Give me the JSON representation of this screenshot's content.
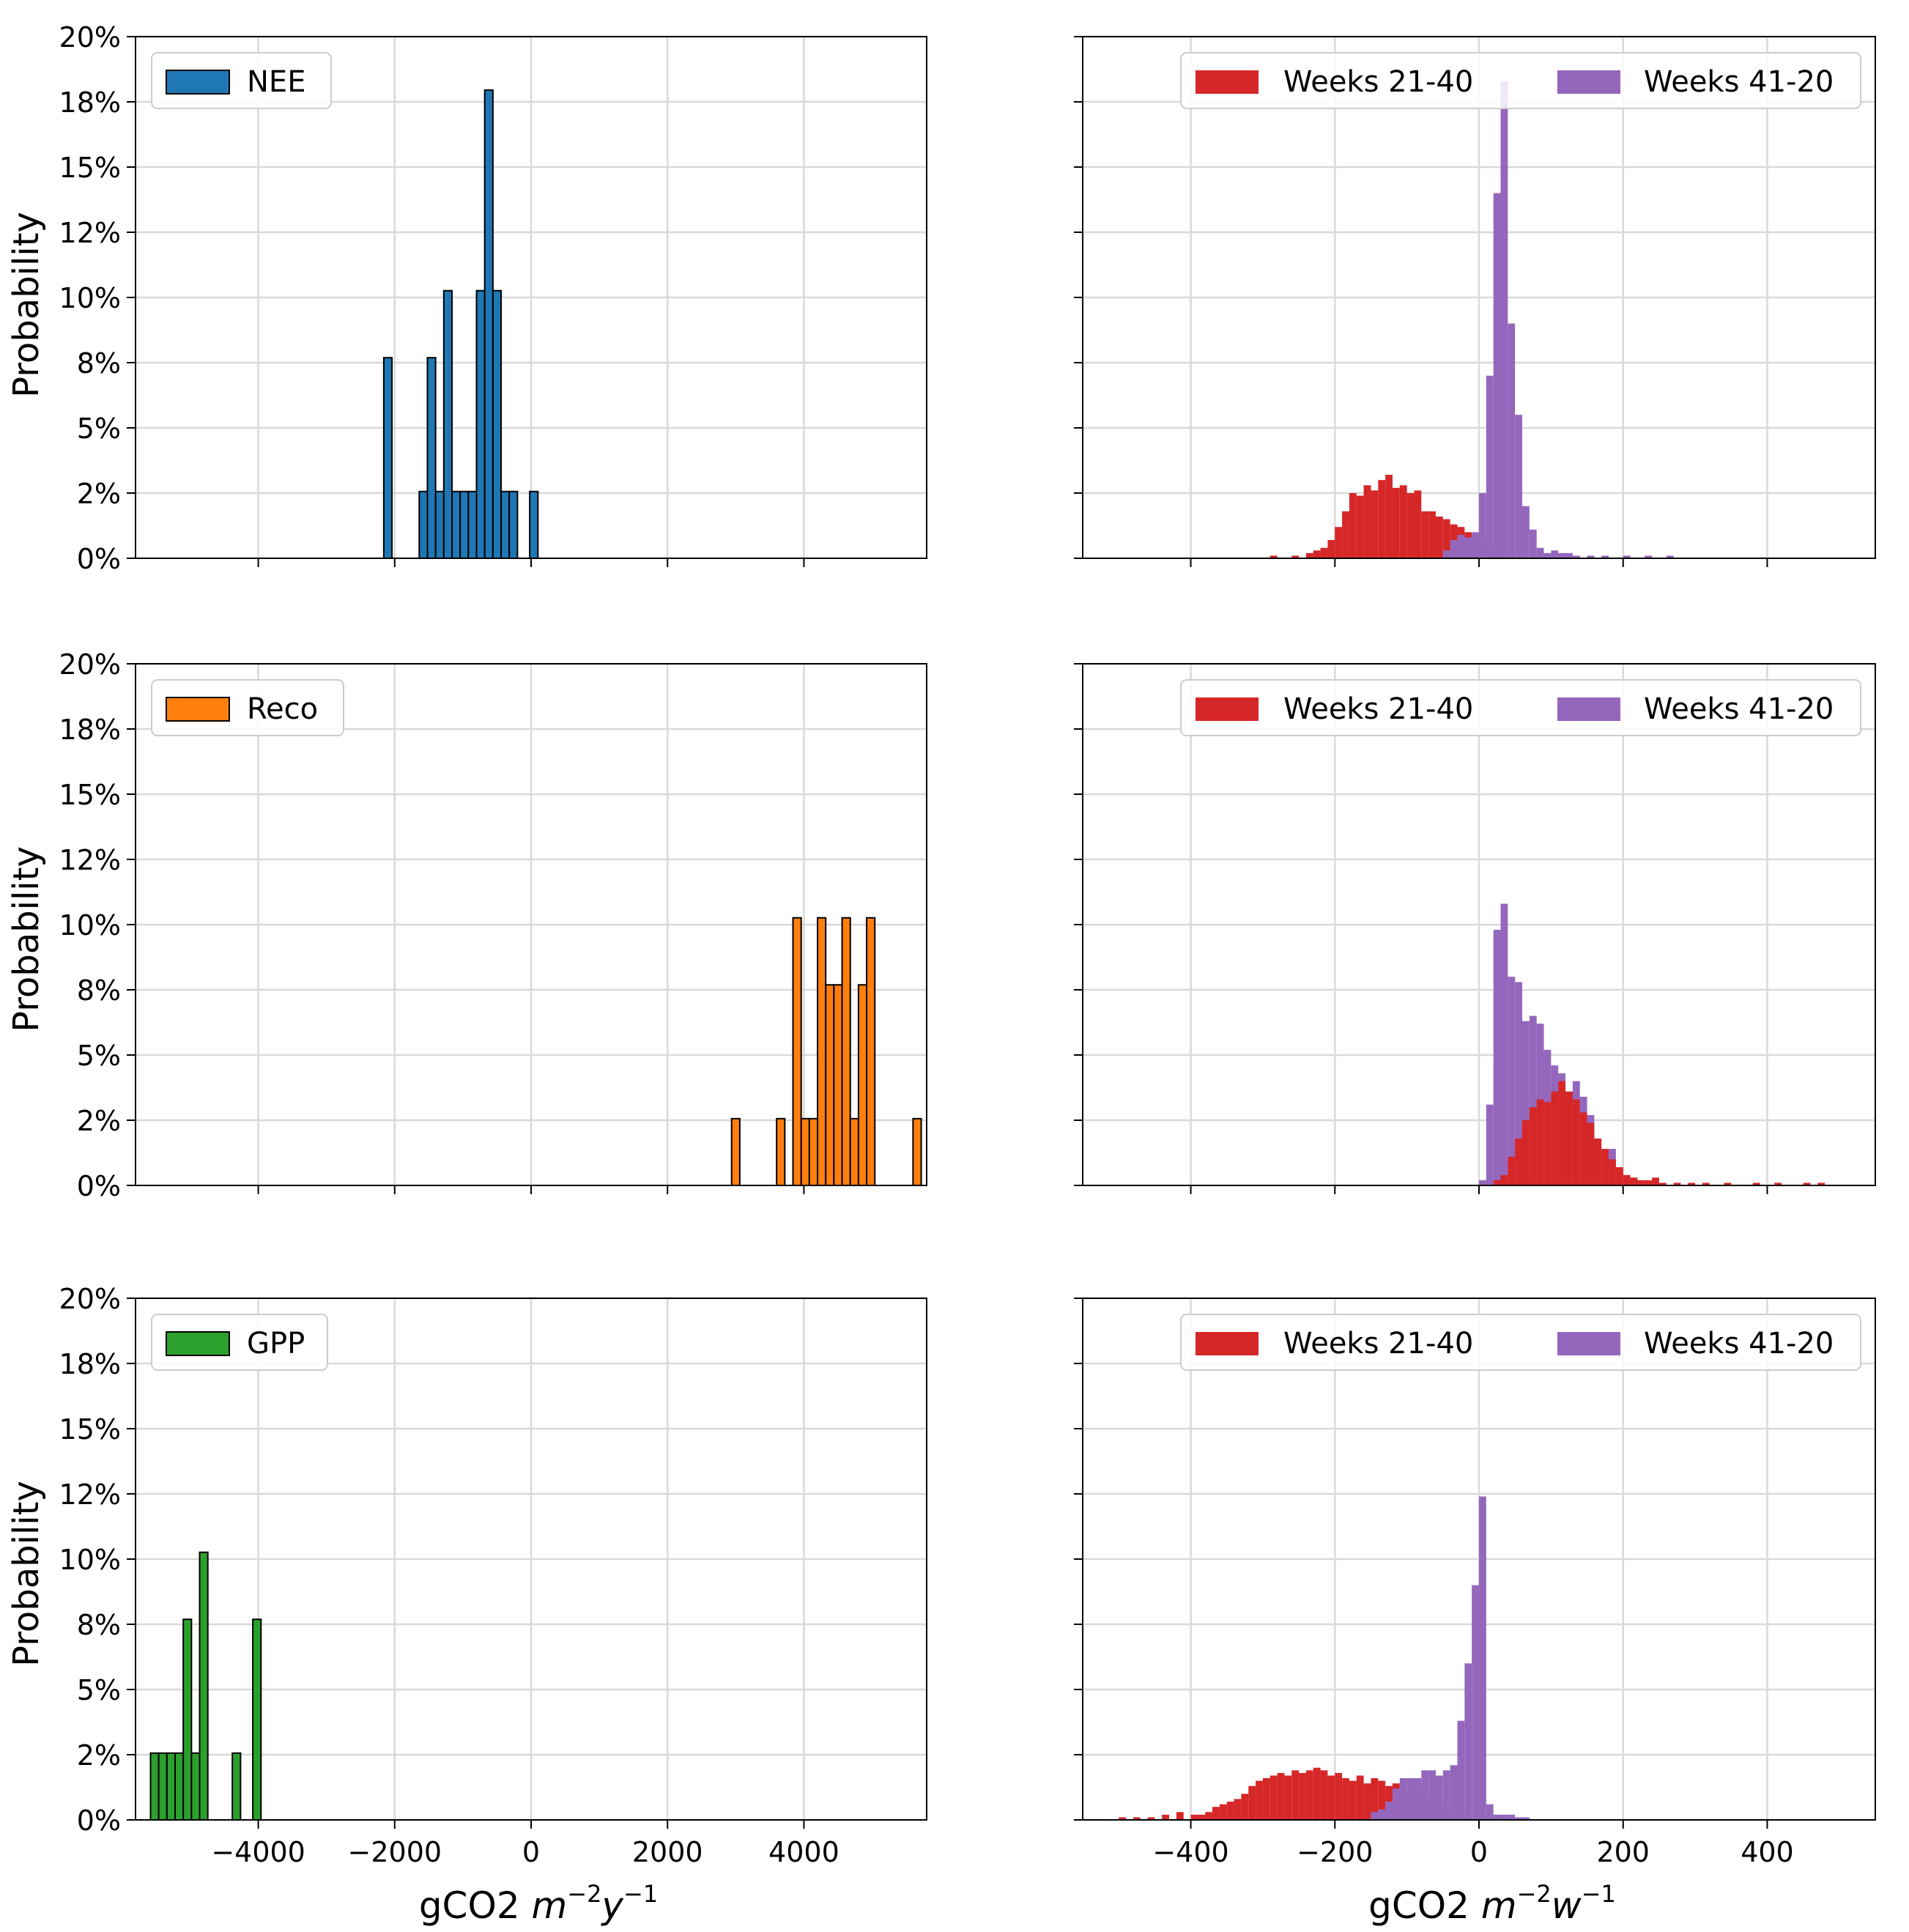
{
  "y_axis_label": "Probability",
  "left_x_axis_label": {
    "prefix": "gCO2 ",
    "base": "m",
    "sup1": "−2",
    "mid": "y",
    "sup2": "−1"
  },
  "right_x_axis_label": {
    "prefix": "gCO2 ",
    "base": "m",
    "sup1": "−2",
    "mid": "w",
    "sup2": "−1"
  },
  "y_ticks": [
    "0%",
    "2%",
    "5%",
    "8%",
    "10%",
    "12%",
    "15%",
    "18%",
    "20%"
  ],
  "left_x_ticks": [
    "−4000",
    "−2000",
    "0",
    "2000",
    "4000"
  ],
  "right_x_ticks": [
    "−400",
    "−200",
    "0",
    "200",
    "400"
  ],
  "colors": {
    "NEE": "#1f77b4",
    "Reco": "#ff7f0e",
    "GPP": "#2ca02c",
    "weeks_21_40": "#d62728",
    "weeks_41_20": "#9467bd"
  },
  "chart_data": [
    {
      "type": "bar",
      "panel": "NEE annual",
      "legend": "NEE",
      "xlabel": "gCO2 m^-2 y^-1",
      "ylabel": "Probability",
      "xlim": [
        -5800,
        5800
      ],
      "ylim": [
        0,
        0.2
      ],
      "bin_width": 120,
      "bins": [
        [
          -2160,
          0.0769
        ],
        [
          -1640,
          0.0256
        ],
        [
          -1520,
          0.0769
        ],
        [
          -1400,
          0.0256
        ],
        [
          -1280,
          0.1026
        ],
        [
          -1160,
          0.0256
        ],
        [
          -1040,
          0.0256
        ],
        [
          -920,
          0.0256
        ],
        [
          -800,
          0.1026
        ],
        [
          -680,
          0.1795
        ],
        [
          -560,
          0.1026
        ],
        [
          -440,
          0.0256
        ],
        [
          -320,
          0.0256
        ],
        [
          -20,
          0.0256
        ]
      ]
    },
    {
      "type": "bar",
      "panel": "Reco annual",
      "legend": "Reco",
      "xlabel": "gCO2 m^-2 y^-1",
      "ylabel": "Probability",
      "xlim": [
        -5800,
        5800
      ],
      "ylim": [
        0,
        0.2
      ],
      "bin_width": 120,
      "bins": [
        [
          2940,
          0.0256
        ],
        [
          3600,
          0.0256
        ],
        [
          3840,
          0.1026
        ],
        [
          3960,
          0.0256
        ],
        [
          4080,
          0.0256
        ],
        [
          4200,
          0.1026
        ],
        [
          4320,
          0.0769
        ],
        [
          4440,
          0.0769
        ],
        [
          4560,
          0.1026
        ],
        [
          4680,
          0.0256
        ],
        [
          4800,
          0.0769
        ],
        [
          4920,
          0.1026
        ],
        [
          5600,
          0.0256
        ]
      ]
    },
    {
      "type": "bar",
      "panel": "GPP annual",
      "legend": "GPP",
      "xlabel": "gCO2 m^-2 y^-1",
      "ylabel": "Probability",
      "xlim": [
        -5800,
        5800
      ],
      "ylim": [
        0,
        0.2
      ],
      "bin_width": 120,
      "bins": [
        [
          -5580,
          0.0256
        ],
        [
          -5460,
          0.0256
        ],
        [
          -5340,
          0.0256
        ],
        [
          -5220,
          0.0256
        ],
        [
          -5100,
          0.0769
        ],
        [
          -4980,
          0.0256
        ],
        [
          -4860,
          0.1026
        ],
        [
          -4380,
          0.0256
        ],
        [
          -4080,
          0.0769
        ]
      ]
    },
    {
      "type": "bar",
      "panel": "NEE weekly",
      "legend": [
        "Weeks 21-40",
        "Weeks 41-20"
      ],
      "xlabel": "gCO2 m^-2 w^-1",
      "xlim": [
        -550,
        550
      ],
      "ylim": [
        0,
        0.2
      ],
      "bin_width": 10,
      "series": [
        {
          "name": "Weeks 21-40",
          "color": "#d62728",
          "bins": [
            [
              -290,
              0.001
            ],
            [
              -260,
              0.001
            ],
            [
              -240,
              0.002
            ],
            [
              -230,
              0.003
            ],
            [
              -220,
              0.004
            ],
            [
              -210,
              0.007
            ],
            [
              -200,
              0.012
            ],
            [
              -190,
              0.018
            ],
            [
              -180,
              0.025
            ],
            [
              -170,
              0.024
            ],
            [
              -160,
              0.028
            ],
            [
              -150,
              0.026
            ],
            [
              -140,
              0.03
            ],
            [
              -130,
              0.032
            ],
            [
              -120,
              0.027
            ],
            [
              -110,
              0.028
            ],
            [
              -100,
              0.025
            ],
            [
              -90,
              0.026
            ],
            [
              -80,
              0.018
            ],
            [
              -70,
              0.018
            ],
            [
              -60,
              0.016
            ],
            [
              -50,
              0.015
            ],
            [
              -40,
              0.013
            ],
            [
              -30,
              0.012
            ],
            [
              -20,
              0.01
            ],
            [
              -10,
              0.008
            ],
            [
              0,
              0.007
            ],
            [
              10,
              0.004
            ],
            [
              20,
              0.003
            ],
            [
              30,
              0.002
            ],
            [
              40,
              0.001
            ]
          ]
        },
        {
          "name": "Weeks 41-20",
          "color": "#9467bd",
          "bins": [
            [
              -50,
              0.003
            ],
            [
              -40,
              0.007
            ],
            [
              -30,
              0.009
            ],
            [
              -20,
              0.008
            ],
            [
              -10,
              0.01
            ],
            [
              0,
              0.025
            ],
            [
              10,
              0.07
            ],
            [
              20,
              0.14
            ],
            [
              30,
              0.183
            ],
            [
              40,
              0.09
            ],
            [
              50,
              0.055
            ],
            [
              60,
              0.02
            ],
            [
              70,
              0.011
            ],
            [
              80,
              0.004
            ],
            [
              90,
              0.002
            ],
            [
              100,
              0.003
            ],
            [
              110,
              0.002
            ],
            [
              120,
              0.002
            ],
            [
              130,
              0.001
            ],
            [
              150,
              0.001
            ],
            [
              170,
              0.001
            ],
            [
              200,
              0.001
            ],
            [
              230,
              0.001
            ],
            [
              260,
              0.001
            ]
          ]
        }
      ]
    },
    {
      "type": "bar",
      "panel": "Reco weekly",
      "legend": [
        "Weeks 21-40",
        "Weeks 41-20"
      ],
      "xlabel": "gCO2 m^-2 w^-1",
      "xlim": [
        -550,
        550
      ],
      "ylim": [
        0,
        0.2
      ],
      "bin_width": 10,
      "series": [
        {
          "name": "Weeks 41-20",
          "color": "#9467bd",
          "bins": [
            [
              0,
              0.002
            ],
            [
              10,
              0.031
            ],
            [
              20,
              0.098
            ],
            [
              30,
              0.108
            ],
            [
              40,
              0.08
            ],
            [
              50,
              0.078
            ],
            [
              60,
              0.063
            ],
            [
              70,
              0.065
            ],
            [
              80,
              0.062
            ],
            [
              90,
              0.052
            ],
            [
              100,
              0.046
            ],
            [
              110,
              0.043
            ],
            [
              120,
              0.036
            ],
            [
              130,
              0.04
            ],
            [
              140,
              0.034
            ],
            [
              150,
              0.027
            ],
            [
              160,
              0.015
            ],
            [
              170,
              0.008
            ],
            [
              180,
              0.014
            ],
            [
              190,
              0.005
            ],
            [
              200,
              0.003
            ],
            [
              210,
              0.002
            ]
          ]
        },
        {
          "name": "Weeks 21-40",
          "color": "#d62728",
          "bins": [
            [
              20,
              0.002
            ],
            [
              30,
              0.004
            ],
            [
              40,
              0.011
            ],
            [
              50,
              0.018
            ],
            [
              60,
              0.025
            ],
            [
              70,
              0.03
            ],
            [
              80,
              0.033
            ],
            [
              90,
              0.032
            ],
            [
              100,
              0.036
            ],
            [
              110,
              0.04
            ],
            [
              120,
              0.036
            ],
            [
              130,
              0.033
            ],
            [
              140,
              0.028
            ],
            [
              150,
              0.024
            ],
            [
              160,
              0.018
            ],
            [
              170,
              0.014
            ],
            [
              180,
              0.01
            ],
            [
              190,
              0.007
            ],
            [
              200,
              0.004
            ],
            [
              210,
              0.003
            ],
            [
              220,
              0.002
            ],
            [
              230,
              0.002
            ],
            [
              240,
              0.003
            ],
            [
              250,
              0.001
            ],
            [
              270,
              0.001
            ],
            [
              290,
              0.001
            ],
            [
              310,
              0.001
            ],
            [
              340,
              0.001
            ],
            [
              380,
              0.001
            ],
            [
              410,
              0.001
            ],
            [
              450,
              0.001
            ],
            [
              470,
              0.001
            ]
          ]
        }
      ]
    },
    {
      "type": "bar",
      "panel": "GPP weekly",
      "legend": [
        "Weeks 21-40",
        "Weeks 41-20"
      ],
      "xlabel": "gCO2 m^-2 w^-1",
      "xlim": [
        -550,
        550
      ],
      "ylim": [
        0,
        0.2
      ],
      "bin_width": 10,
      "series": [
        {
          "name": "Weeks 21-40",
          "color": "#d62728",
          "bins": [
            [
              -500,
              0.001
            ],
            [
              -480,
              0.001
            ],
            [
              -460,
              0.001
            ],
            [
              -440,
              0.002
            ],
            [
              -420,
              0.003
            ],
            [
              -400,
              0.002
            ],
            [
              -390,
              0.002
            ],
            [
              -380,
              0.003
            ],
            [
              -370,
              0.005
            ],
            [
              -360,
              0.006
            ],
            [
              -350,
              0.007
            ],
            [
              -340,
              0.008
            ],
            [
              -330,
              0.01
            ],
            [
              -320,
              0.013
            ],
            [
              -310,
              0.015
            ],
            [
              -300,
              0.016
            ],
            [
              -290,
              0.017
            ],
            [
              -280,
              0.018
            ],
            [
              -270,
              0.017
            ],
            [
              -260,
              0.019
            ],
            [
              -250,
              0.018
            ],
            [
              -240,
              0.019
            ],
            [
              -230,
              0.02
            ],
            [
              -220,
              0.019
            ],
            [
              -210,
              0.017
            ],
            [
              -200,
              0.018
            ],
            [
              -190,
              0.016
            ],
            [
              -180,
              0.015
            ],
            [
              -170,
              0.017
            ],
            [
              -160,
              0.014
            ],
            [
              -150,
              0.016
            ],
            [
              -140,
              0.015
            ],
            [
              -130,
              0.013
            ],
            [
              -120,
              0.014
            ],
            [
              -110,
              0.013
            ],
            [
              -100,
              0.011
            ],
            [
              -90,
              0.012
            ],
            [
              -80,
              0.01
            ],
            [
              -70,
              0.008
            ],
            [
              -60,
              0.005
            ],
            [
              -50,
              0.004
            ],
            [
              -40,
              0.002
            ],
            [
              -30,
              0.002
            ],
            [
              -20,
              0.001
            ]
          ]
        },
        {
          "name": "Weeks 41-20",
          "color": "#9467bd",
          "bins": [
            [
              -150,
              0.003
            ],
            [
              -140,
              0.004
            ],
            [
              -130,
              0.007
            ],
            [
              -120,
              0.012
            ],
            [
              -110,
              0.016
            ],
            [
              -100,
              0.016
            ],
            [
              -90,
              0.016
            ],
            [
              -80,
              0.019
            ],
            [
              -70,
              0.019
            ],
            [
              -60,
              0.017
            ],
            [
              -50,
              0.019
            ],
            [
              -40,
              0.021
            ],
            [
              -30,
              0.038
            ],
            [
              -20,
              0.06
            ],
            [
              -10,
              0.09
            ],
            [
              0,
              0.124
            ],
            [
              10,
              0.006
            ],
            [
              20,
              0.002
            ],
            [
              30,
              0.002
            ],
            [
              40,
              0.002
            ],
            [
              50,
              0.001
            ],
            [
              60,
              0.001
            ]
          ]
        }
      ]
    }
  ]
}
